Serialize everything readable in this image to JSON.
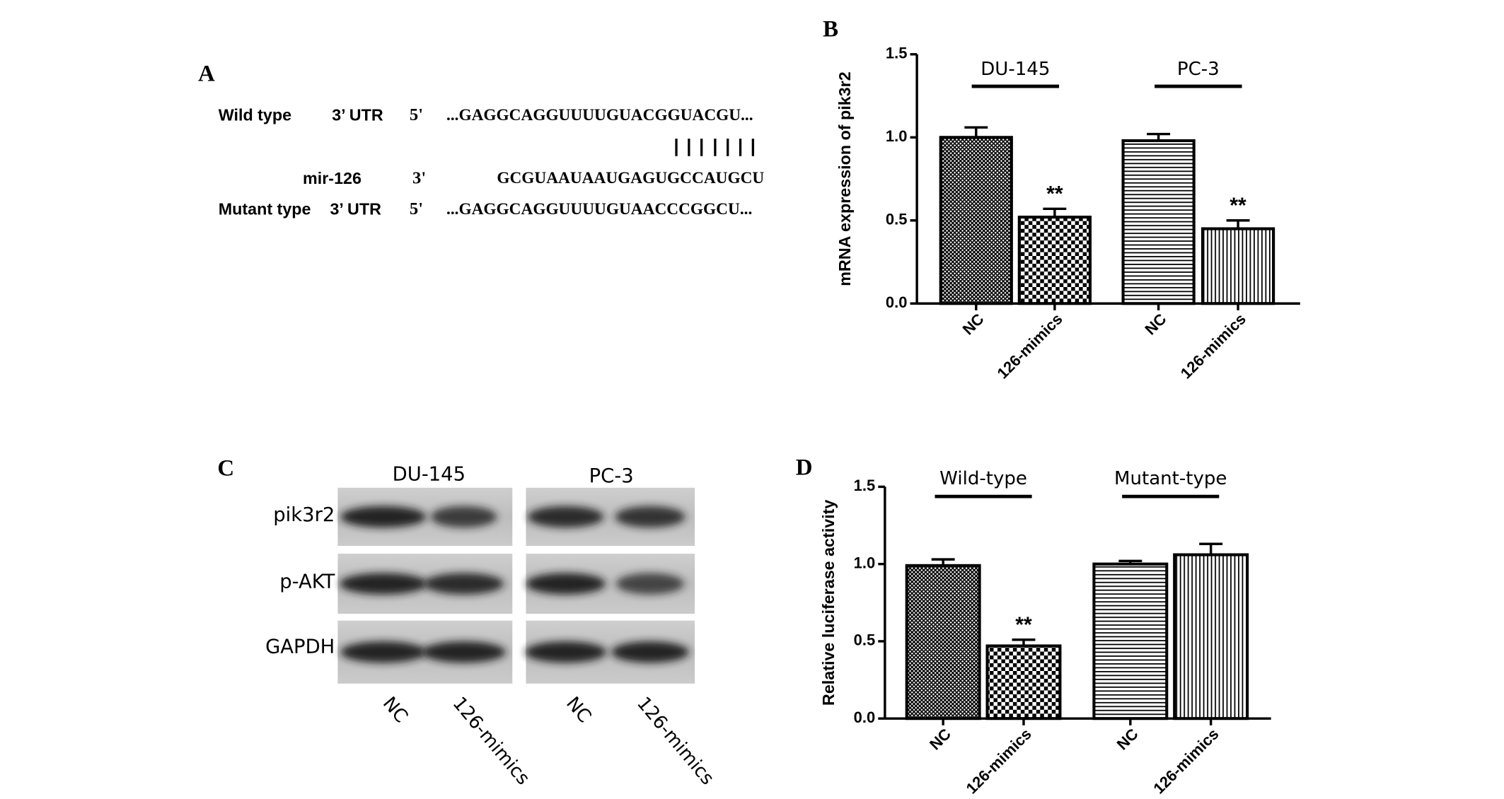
{
  "panel_a": {
    "label": "A",
    "rows": [
      {
        "name": "Wild type",
        "region": "3’ UTR",
        "end": "5'",
        "sequence": "...GAGGCAGGUUUUGUACGGUACGU..."
      },
      {
        "name": "mir-126",
        "end": "3'",
        "sequence": "GCGUAAUAAUGAGUGCCAUGCU"
      },
      {
        "name": "Mutant type",
        "region": "3’ UTR",
        "end": "5'",
        "sequence": "...GAGGCAGGUUUUGUAACCCGGCU..."
      }
    ]
  },
  "panel_c": {
    "label": "C",
    "groups": [
      "DU-145",
      "PC-3"
    ],
    "proteins": [
      "pik3r2",
      "p-AKT",
      "GAPDH"
    ],
    "lanes": [
      "NC",
      "126-mimics",
      "NC",
      "126-mimics"
    ]
  },
  "chart_data": [
    {
      "type": "bar",
      "panel_label": "B",
      "ylabel": "mRNA expression of pik3r2",
      "groups": [
        "DU-145",
        "PC-3"
      ],
      "categories": [
        "NC",
        "126-mimics",
        "NC",
        "126-mimics"
      ],
      "values": [
        1.0,
        0.52,
        0.98,
        0.45
      ],
      "errors": [
        0.06,
        0.05,
        0.04,
        0.05
      ],
      "significance": [
        null,
        "**",
        null,
        "**"
      ],
      "bar_patterns": [
        "crosshatch",
        "checker",
        "hlines",
        "vlines"
      ],
      "ylim": [
        0,
        1.5
      ],
      "yticks": [
        {
          "value": 0,
          "label": "0.0"
        },
        0.5,
        {
          "value": 1,
          "label": "1.0"
        },
        1.5
      ]
    },
    {
      "type": "bar",
      "panel_label": "D",
      "ylabel": "Relative luciferase activity",
      "groups": [
        "Wild-type",
        "Mutant-type"
      ],
      "categories": [
        "NC",
        "126-mimics",
        "NC",
        "126-mimics"
      ],
      "values": [
        0.99,
        0.47,
        1.0,
        1.06
      ],
      "errors": [
        0.04,
        0.04,
        0.02,
        0.07
      ],
      "significance": [
        null,
        "**",
        null,
        null
      ],
      "bar_patterns": [
        "crosshatch",
        "checker",
        "hlines",
        "vlines"
      ],
      "ylim": [
        0,
        1.5
      ],
      "yticks": [
        {
          "value": 0,
          "label": "0.0"
        },
        0.5,
        {
          "value": 1,
          "label": "1.0"
        },
        1.5
      ]
    }
  ]
}
